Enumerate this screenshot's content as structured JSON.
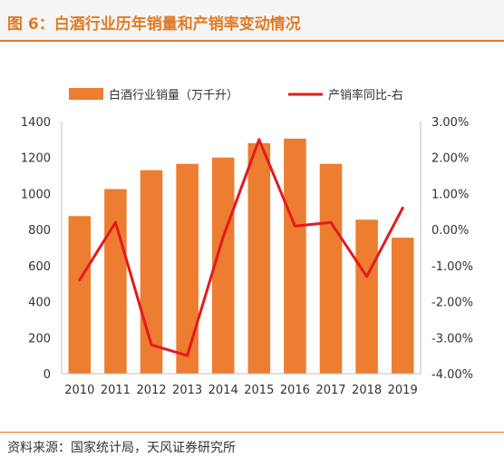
{
  "header": {
    "title": "图 6：白酒行业历年销量和产销率变动情况"
  },
  "footer": {
    "source": "资料来源：国家统计局，天风证券研究所"
  },
  "colors": {
    "bar": "#ED7D31",
    "line": "#E31A1C",
    "accent": "#E07B25"
  },
  "chart_data": {
    "type": "bar",
    "categories": [
      "2010",
      "2011",
      "2012",
      "2013",
      "2014",
      "2015",
      "2016",
      "2017",
      "2018",
      "2019"
    ],
    "series": [
      {
        "name": "白酒行业销量（万千升）",
        "kind": "bar",
        "axis": "left",
        "values": [
          875,
          1025,
          1130,
          1165,
          1200,
          1280,
          1305,
          1165,
          855,
          755
        ]
      },
      {
        "name": "产销率同比-右",
        "kind": "line",
        "axis": "right",
        "values": [
          -1.4,
          0.2,
          -3.2,
          -3.5,
          -0.2,
          2.5,
          0.1,
          0.2,
          -1.3,
          0.6
        ]
      }
    ],
    "left_axis": {
      "ylim": [
        0,
        1400
      ],
      "ticks": [
        "0",
        "200",
        "400",
        "600",
        "800",
        "1000",
        "1200",
        "1400"
      ]
    },
    "right_axis": {
      "ylim": [
        -4,
        3
      ],
      "ticks": [
        "-4.00%",
        "-3.00%",
        "-2.00%",
        "-1.00%",
        "0.00%",
        "1.00%",
        "2.00%",
        "3.00%"
      ]
    },
    "legend_position": "top",
    "grid": false
  }
}
